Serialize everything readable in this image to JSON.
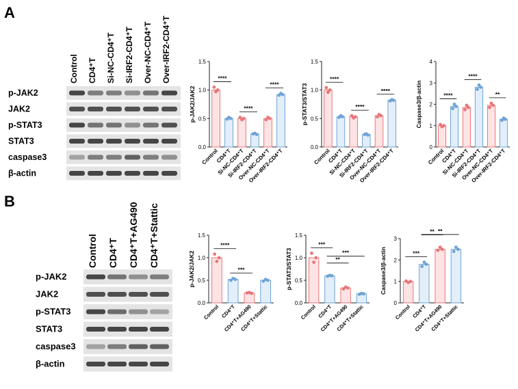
{
  "panels": {
    "A": {
      "label": "A",
      "blot": {
        "lanes": [
          "Control",
          "CD4⁺T",
          "Si-NC-CD4⁺T",
          "Si-IRF2-CD4⁺T",
          "Over-NC-CD4⁺T",
          "Over-IRF2-CD4⁺T"
        ],
        "rows": [
          "p-JAK2",
          "JAK2",
          "p-STAT3",
          "STAT3",
          "caspase3",
          "β-actin"
        ],
        "intensity": [
          [
            0.85,
            0.55,
            0.55,
            0.45,
            0.6,
            0.85
          ],
          [
            0.8,
            0.8,
            0.8,
            0.8,
            0.8,
            0.8
          ],
          [
            0.85,
            0.6,
            0.6,
            0.45,
            0.6,
            0.8
          ],
          [
            0.85,
            0.85,
            0.85,
            0.85,
            0.85,
            0.85
          ],
          [
            0.35,
            0.55,
            0.55,
            0.7,
            0.55,
            0.45
          ],
          [
            0.85,
            0.85,
            0.85,
            0.85,
            0.85,
            0.85
          ]
        ]
      }
    },
    "B": {
      "label": "B",
      "blot": {
        "lanes": [
          "Control",
          "CD4⁺T",
          "CD4⁺T+AG490",
          "CD4⁺T+Stattic"
        ],
        "rows": [
          "p-JAK2",
          "JAK2",
          "p-STAT3",
          "STAT3",
          "caspase3",
          "β-actin"
        ],
        "intensity": [
          [
            0.85,
            0.6,
            0.45,
            0.55
          ],
          [
            0.8,
            0.8,
            0.8,
            0.8
          ],
          [
            0.85,
            0.65,
            0.45,
            0.35
          ],
          [
            0.85,
            0.85,
            0.85,
            0.85
          ],
          [
            0.35,
            0.55,
            0.7,
            0.7
          ],
          [
            0.85,
            0.85,
            0.85,
            0.85
          ]
        ]
      }
    }
  },
  "colors": {
    "red": "#e8767a",
    "red_fill": "#fde3e4",
    "blue": "#6fa3d6",
    "blue_fill": "#e2eef9",
    "band": "#2a2a2a"
  },
  "chart_data": [
    {
      "type": "bar",
      "panel": "A",
      "ylabel": "p-JAK2/JAK2",
      "ylim": [
        0,
        1.5
      ],
      "yticks": [
        "0.0",
        "0.5",
        "1.0",
        "1.5"
      ],
      "categories": [
        "Control",
        "CD4⁺T",
        "Si-NC-CD4⁺T",
        "Si-IRF2-CD4⁺T",
        "Over-NC-CD4⁺T",
        "Over-IRF2-CD4⁺T"
      ],
      "values": [
        1.0,
        0.5,
        0.5,
        0.23,
        0.5,
        0.92
      ],
      "bar_colors": [
        "red",
        "blue",
        "red",
        "blue",
        "red",
        "blue"
      ],
      "points": [
        [
          1.05,
          0.97,
          1.0
        ],
        [
          0.49,
          0.52,
          0.5
        ],
        [
          0.52,
          0.48,
          0.5
        ],
        [
          0.23,
          0.24,
          0.22
        ],
        [
          0.48,
          0.52,
          0.5
        ],
        [
          0.91,
          0.94,
          0.92
        ]
      ],
      "annotations": [
        {
          "from": 0,
          "to": 1,
          "text": "****"
        },
        {
          "from": 2,
          "to": 3,
          "text": "****"
        },
        {
          "from": 4,
          "to": 5,
          "text": "****"
        }
      ]
    },
    {
      "type": "bar",
      "panel": "A",
      "ylabel": "p-STAT3/STAT3",
      "ylim": [
        0,
        1.5
      ],
      "yticks": [
        "0.0",
        "0.5",
        "1.0",
        "1.5"
      ],
      "categories": [
        "Control",
        "CD4⁺T",
        "Si-NC-CD4⁺T",
        "Si-IRF2-CD4⁺T",
        "Over-NC-CD4⁺T",
        "Over-IRF2-CD4⁺T"
      ],
      "values": [
        1.0,
        0.53,
        0.53,
        0.22,
        0.55,
        0.82
      ],
      "bar_colors": [
        "red",
        "blue",
        "red",
        "blue",
        "red",
        "blue"
      ],
      "points": [
        [
          1.04,
          0.96,
          1.0
        ],
        [
          0.52,
          0.55,
          0.53
        ],
        [
          0.55,
          0.51,
          0.53
        ],
        [
          0.22,
          0.23,
          0.21
        ],
        [
          0.53,
          0.57,
          0.55
        ],
        [
          0.81,
          0.83,
          0.82
        ]
      ],
      "annotations": [
        {
          "from": 0,
          "to": 1,
          "text": "****"
        },
        {
          "from": 2,
          "to": 3,
          "text": "****"
        },
        {
          "from": 4,
          "to": 5,
          "text": "****"
        }
      ]
    },
    {
      "type": "bar",
      "panel": "A",
      "ylabel": "Caspase3/β-actin",
      "ylim": [
        0,
        4
      ],
      "yticks": [
        "0",
        "1",
        "2",
        "3",
        "4"
      ],
      "categories": [
        "Control",
        "CD4⁺T",
        "Si-NC-CD4⁺T",
        "Si-IRF2-CD4⁺T",
        "Over-NC-CD4⁺T",
        "Over-IRF2-CD4⁺T"
      ],
      "values": [
        1.0,
        1.9,
        1.85,
        2.8,
        1.95,
        1.3
      ],
      "bar_colors": [
        "red",
        "blue",
        "red",
        "blue",
        "red",
        "blue"
      ],
      "points": [
        [
          1.05,
          0.95,
          1.0
        ],
        [
          1.8,
          2.0,
          1.9
        ],
        [
          1.75,
          1.95,
          1.85
        ],
        [
          2.7,
          2.9,
          2.8
        ],
        [
          1.85,
          2.05,
          1.95
        ],
        [
          1.25,
          1.35,
          1.3
        ]
      ],
      "annotations": [
        {
          "from": 0,
          "to": 1,
          "text": "****"
        },
        {
          "from": 2,
          "to": 3,
          "text": "****"
        },
        {
          "from": 4,
          "to": 5,
          "text": "**"
        }
      ]
    },
    {
      "type": "bar",
      "panel": "B",
      "ylabel": "p-JAK2/JAK2",
      "ylim": [
        0,
        1.5
      ],
      "yticks": [
        "0.0",
        "0.5",
        "1.0",
        "1.5"
      ],
      "categories": [
        "Control",
        "CD4⁺T",
        "CD4⁺T+AG490",
        "CD4⁺T+Stattic"
      ],
      "values": [
        1.0,
        0.52,
        0.22,
        0.5
      ],
      "bar_colors": [
        "red",
        "blue",
        "red",
        "blue"
      ],
      "points": [
        [
          1.08,
          0.92,
          1.0
        ],
        [
          0.5,
          0.54,
          0.52
        ],
        [
          0.22,
          0.23,
          0.21
        ],
        [
          0.48,
          0.52,
          0.5
        ]
      ],
      "annotations": [
        {
          "from": 0,
          "to": 1,
          "text": "****"
        },
        {
          "from": 1,
          "to": 2,
          "text": "***"
        }
      ]
    },
    {
      "type": "bar",
      "panel": "B",
      "ylabel": "p-STAT3/STAT3",
      "ylim": [
        0,
        1.5
      ],
      "yticks": [
        "0.0",
        "0.5",
        "1.0",
        "1.5"
      ],
      "categories": [
        "Control",
        "CD4⁺T",
        "CD4⁺T+AG490",
        "CD4⁺T+Stattic"
      ],
      "values": [
        1.0,
        0.6,
        0.33,
        0.2
      ],
      "bar_colors": [
        "red",
        "blue",
        "red",
        "blue"
      ],
      "points": [
        [
          1.1,
          0.9,
          1.0
        ],
        [
          0.59,
          0.61,
          0.6
        ],
        [
          0.31,
          0.35,
          0.33
        ],
        [
          0.19,
          0.21,
          0.2
        ]
      ],
      "annotations": [
        {
          "from": 0,
          "to": 1,
          "text": "***"
        },
        {
          "from": 1,
          "to": 2,
          "text": "**"
        },
        {
          "from": 1,
          "to": 3,
          "text": "***"
        }
      ]
    },
    {
      "type": "bar",
      "panel": "B",
      "ylabel": "Caspase3/β-actin",
      "ylim": [
        0,
        3
      ],
      "yticks": [
        "0",
        "1",
        "2",
        "3"
      ],
      "categories": [
        "Control",
        "CD4⁺T",
        "CD4⁺T+AG490",
        "CD4⁺T+Stattic"
      ],
      "values": [
        1.0,
        1.8,
        2.5,
        2.5
      ],
      "bar_colors": [
        "red",
        "blue",
        "red",
        "blue"
      ],
      "points": [
        [
          1.02,
          0.95,
          1.0
        ],
        [
          1.7,
          1.9,
          1.8
        ],
        [
          2.45,
          2.6,
          2.5
        ],
        [
          2.4,
          2.6,
          2.5
        ]
      ],
      "annotations": [
        {
          "from": 0,
          "to": 1,
          "text": "***"
        },
        {
          "from": 1,
          "to": 2,
          "text": "**"
        },
        {
          "from": 1,
          "to": 3,
          "text": "**"
        }
      ]
    }
  ]
}
